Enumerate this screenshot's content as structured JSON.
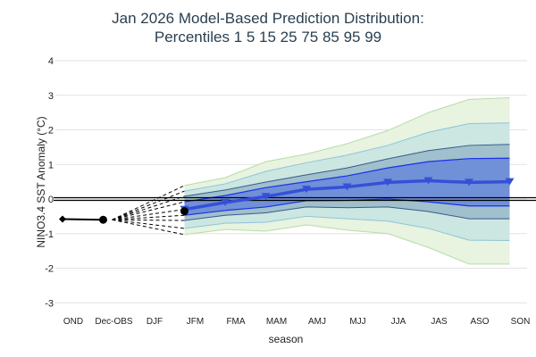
{
  "chart_data": {
    "type": "area",
    "title": [
      "Jan 2026 Model-Based Prediction Distribution:",
      "Percentiles 1 5 15 25 75 85 95 99"
    ],
    "xlabel": "season",
    "ylabel": "NINO3.4 SST Anomaly (°C)",
    "ylim": [
      -3,
      4
    ],
    "yticks": [
      -3,
      -2,
      -1,
      0,
      1,
      2,
      3,
      4
    ],
    "grid": true,
    "categories": [
      "OND",
      "Dec-OBS",
      "DJF",
      "JFM",
      "FMA",
      "MAM",
      "AMJ",
      "MJJ",
      "JJA",
      "JAS",
      "ASO",
      "SON"
    ],
    "tick_labels": [
      "OND",
      "Dec-OBS",
      "DJF",
      "JFM",
      "FMA",
      "MAM",
      "AMJ",
      "MJJ",
      "JJA",
      "JAS",
      "ASO",
      "SON"
    ],
    "observed": {
      "categories": [
        "OND",
        "Dec-OBS"
      ],
      "values": [
        -0.58,
        -0.6
      ]
    },
    "forecast_start": {
      "category": "JFM",
      "value": -0.35
    },
    "forecast_categories": [
      "JFM",
      "FMA",
      "MAM",
      "AMJ",
      "MJJ",
      "JJA",
      "JAS",
      "ASO",
      "SON"
    ],
    "percentiles": {
      "p1": [
        -1.03,
        -0.88,
        -0.93,
        -0.75,
        -0.9,
        -1.0,
        -1.4,
        -1.88,
        -1.88
      ],
      "p5": [
        -0.85,
        -0.7,
        -0.67,
        -0.5,
        -0.57,
        -0.64,
        -0.85,
        -1.19,
        -1.2
      ],
      "p15": [
        -0.62,
        -0.47,
        -0.4,
        -0.23,
        -0.25,
        -0.23,
        -0.36,
        -0.57,
        -0.57
      ],
      "p25": [
        -0.47,
        -0.33,
        -0.23,
        -0.05,
        -0.04,
        0.0,
        -0.08,
        -0.2,
        -0.2
      ],
      "p50": [
        -0.3,
        -0.1,
        0.07,
        0.28,
        0.35,
        0.48,
        0.53,
        0.48,
        0.5
      ],
      "p75": [
        -0.08,
        0.1,
        0.33,
        0.5,
        0.67,
        0.9,
        1.08,
        1.17,
        1.18
      ],
      "p85": [
        0.08,
        0.26,
        0.49,
        0.7,
        0.9,
        1.16,
        1.4,
        1.55,
        1.58
      ],
      "p95": [
        0.23,
        0.44,
        0.8,
        1.05,
        1.27,
        1.55,
        1.93,
        2.18,
        2.2
      ],
      "p99": [
        0.39,
        0.62,
        1.08,
        1.3,
        1.6,
        1.98,
        2.5,
        2.88,
        2.93
      ]
    },
    "colors": {
      "band_1_99": "#e8f3e0",
      "band_5_95": "#cce6e2",
      "band_15_85": "#9fc0cc",
      "band_25_75": "#7090d8",
      "median": "#3550d8",
      "p1_99_line": "#b8dca8",
      "p5_95_line": "#8cc6d8",
      "p15_85_line": "#3a5a8a",
      "p25_75_line": "#1a30e8"
    }
  }
}
